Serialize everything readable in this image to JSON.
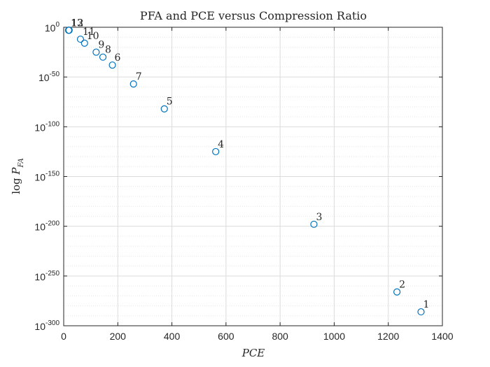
{
  "chart_data": {
    "type": "scatter",
    "title": "PFA and PCE versus Compression Ratio",
    "xlabel": "PCE",
    "ylabel_parts": [
      "log ",
      "P",
      "FA"
    ],
    "xlim": [
      0,
      1400
    ],
    "ylim_exp": [
      -300,
      0
    ],
    "y_scale": "log",
    "grid": true,
    "minor_grid": true,
    "x_ticks": [
      "0",
      "200",
      "400",
      "600",
      "800",
      "1000",
      "1200",
      "1400"
    ],
    "y_tick_base": "10",
    "y_tick_exps": [
      "0",
      "-50",
      "-100",
      "-150",
      "-200",
      "-250",
      "-300"
    ],
    "marker_color": "#0072bd",
    "points": [
      {
        "label": "1",
        "x": 1321,
        "y_exp": -286
      },
      {
        "label": "2",
        "x": 1232,
        "y_exp": -266
      },
      {
        "label": "3",
        "x": 925,
        "y_exp": -198
      },
      {
        "label": "4",
        "x": 562,
        "y_exp": -125
      },
      {
        "label": "5",
        "x": 372,
        "y_exp": -82
      },
      {
        "label": "6",
        "x": 180,
        "y_exp": -38
      },
      {
        "label": "7",
        "x": 258,
        "y_exp": -57
      },
      {
        "label": "8",
        "x": 145,
        "y_exp": -30
      },
      {
        "label": "9",
        "x": 120,
        "y_exp": -25
      },
      {
        "label": "10",
        "x": 77,
        "y_exp": -16
      },
      {
        "label": "11",
        "x": 62,
        "y_exp": -12
      },
      {
        "label": "12",
        "x": 20,
        "y_exp": -3
      },
      {
        "label": "13",
        "x": 18,
        "y_exp": -3
      }
    ]
  }
}
